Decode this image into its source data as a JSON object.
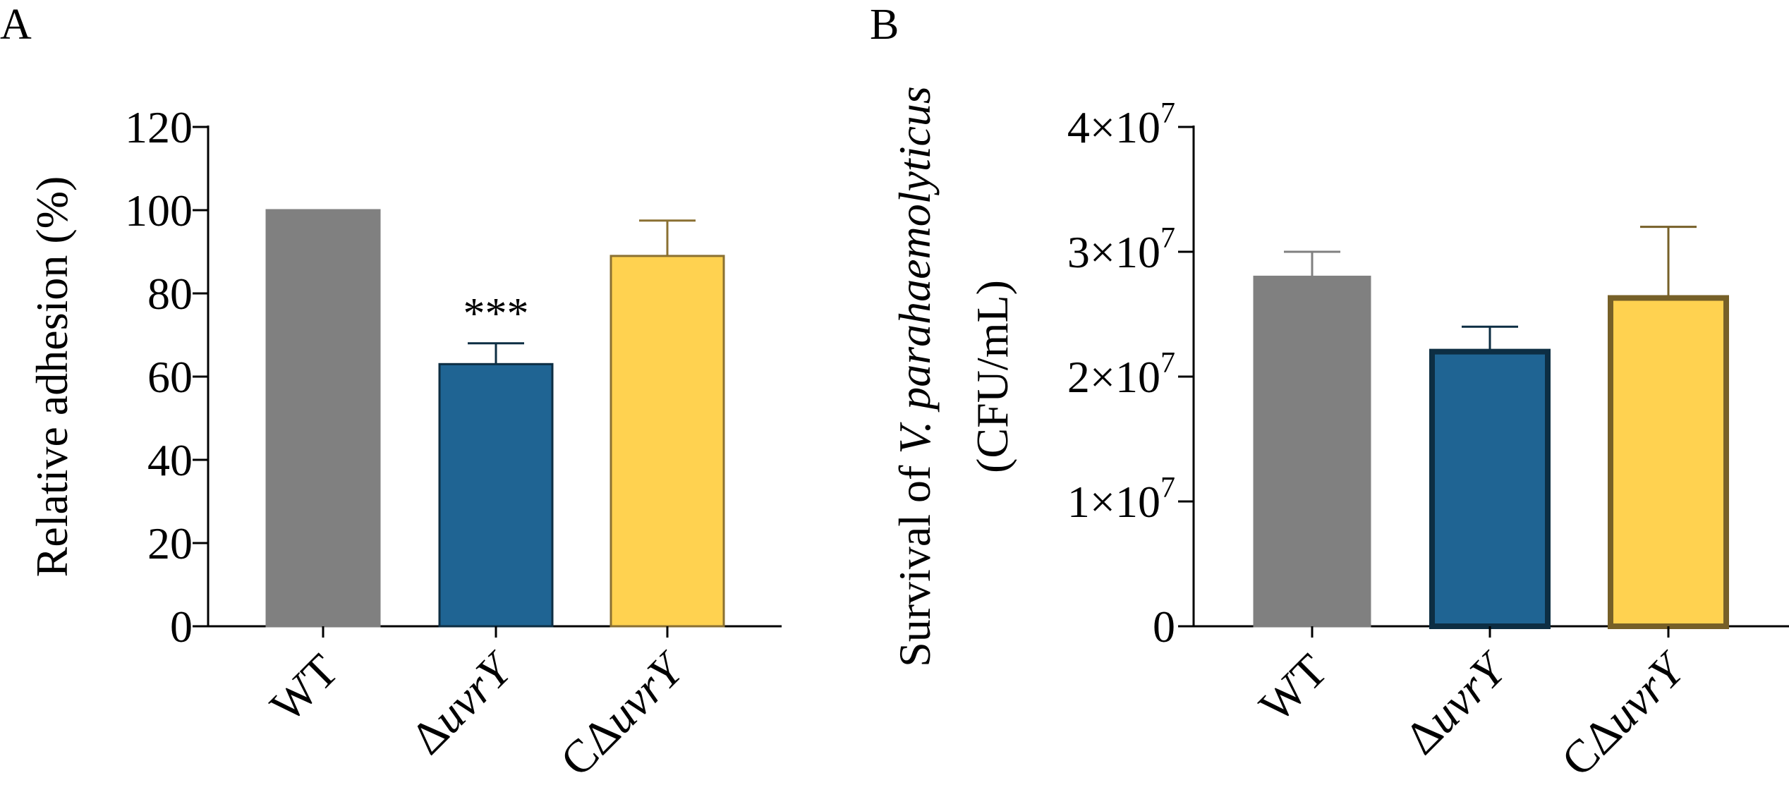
{
  "chart_data": [
    {
      "panel": "A",
      "type": "bar",
      "categories": [
        "WT",
        "ΔuvrY",
        "CΔuvrY"
      ],
      "values": [
        100,
        63,
        89
      ],
      "error": [
        0,
        5,
        8.5
      ],
      "significance": [
        "",
        "***",
        ""
      ],
      "ylabel": "Relative adhesion (%)",
      "ylim": [
        0,
        120
      ],
      "yticks": [
        "0",
        "20",
        "40",
        "60",
        "80",
        "100",
        "120"
      ],
      "grid": false,
      "colors": {
        "fill": [
          "#808080",
          "#1f6493",
          "#ffd250"
        ],
        "stroke": [
          "#808080",
          "#0d2e43",
          "#8a7032"
        ]
      }
    },
    {
      "panel": "B",
      "type": "bar",
      "categories": [
        "WT",
        "ΔuvrY",
        "CΔuvrY"
      ],
      "values": [
        28000000,
        22000000,
        26300000
      ],
      "error": [
        2000000,
        2000000,
        5700000
      ],
      "ylabel_line1_prefix": "Survival of ",
      "ylabel_line1_italic": "V. parahaemolyticus",
      "ylabel_line2": "(CFU/mL)",
      "ylim": [
        0,
        40000000
      ],
      "yticks": [
        "0",
        "1×10",
        "2×10",
        "3×10",
        "4×10"
      ],
      "ytick_exponent": "7",
      "grid": false,
      "colors": {
        "fill": [
          "#808080",
          "#1f6493",
          "#ffd250"
        ],
        "stroke": [
          "#808080",
          "#0d2e43",
          "#766028"
        ]
      }
    }
  ]
}
